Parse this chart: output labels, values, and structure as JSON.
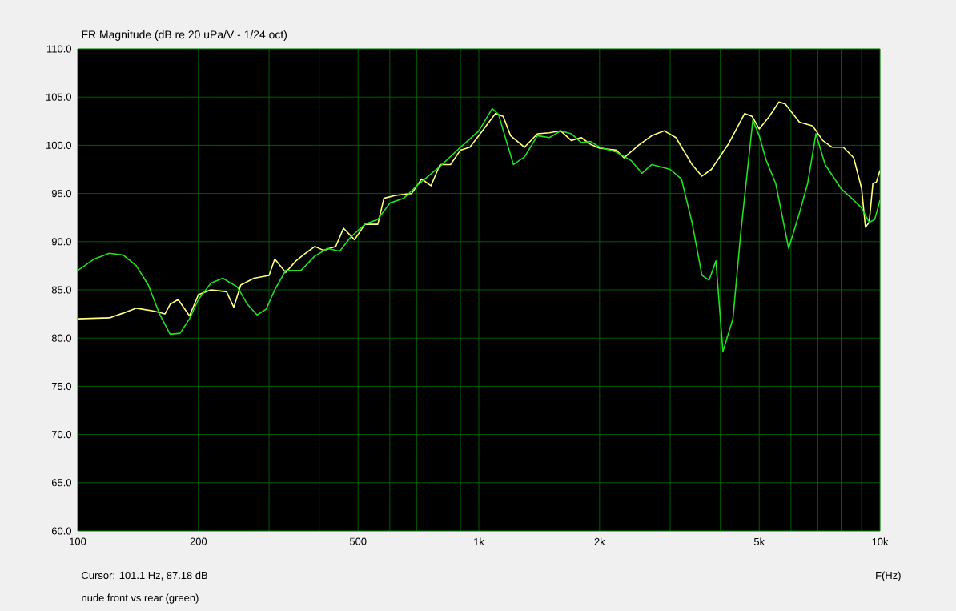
{
  "chart_data": {
    "type": "line",
    "title": "FR Magnitude (dB re 20 uPa/V - 1/24 oct)",
    "xlabel": "F(Hz)",
    "annotations": [
      "Cursor: 101.1 Hz, 87.18 dB",
      "nude front vs rear (green)"
    ],
    "log": "x",
    "grid": true,
    "xlim": [
      100,
      10000
    ],
    "ylim": [
      60,
      110
    ],
    "xticks": [
      {
        "value": 100,
        "label": "100"
      },
      {
        "value": 200,
        "label": "200"
      },
      {
        "value": 300,
        "label": null
      },
      {
        "value": 400,
        "label": null
      },
      {
        "value": 500,
        "label": "500"
      },
      {
        "value": 600,
        "label": null
      },
      {
        "value": 700,
        "label": null
      },
      {
        "value": 800,
        "label": null
      },
      {
        "value": 900,
        "label": null
      },
      {
        "value": 1000,
        "label": "1k"
      },
      {
        "value": 2000,
        "label": "2k"
      },
      {
        "value": 3000,
        "label": null
      },
      {
        "value": 4000,
        "label": null
      },
      {
        "value": 5000,
        "label": "5k"
      },
      {
        "value": 6000,
        "label": null
      },
      {
        "value": 7000,
        "label": null
      },
      {
        "value": 8000,
        "label": null
      },
      {
        "value": 9000,
        "label": null
      },
      {
        "value": 10000,
        "label": "10k"
      }
    ],
    "yticks": [
      {
        "value": 60,
        "label": "60.0"
      },
      {
        "value": 65,
        "label": "65.0"
      },
      {
        "value": 70,
        "label": "70.0"
      },
      {
        "value": 75,
        "label": "75.0"
      },
      {
        "value": 80,
        "label": "80.0"
      },
      {
        "value": 85,
        "label": "85.0"
      },
      {
        "value": 90,
        "label": "90.0"
      },
      {
        "value": 95,
        "label": "95.0"
      },
      {
        "value": 100,
        "label": "100.0"
      },
      {
        "value": 105,
        "label": "105.0"
      },
      {
        "value": 110,
        "label": "110.0"
      }
    ],
    "series": [
      {
        "color": "#ffff80",
        "x": [
          100,
          120,
          130,
          140,
          155,
          165,
          170,
          178,
          190,
          200,
          215,
          235,
          245,
          255,
          275,
          300,
          310,
          330,
          350,
          370,
          390,
          410,
          440,
          460,
          490,
          520,
          560,
          580,
          620,
          680,
          720,
          760,
          800,
          850,
          900,
          950,
          1000,
          1100,
          1150,
          1200,
          1300,
          1400,
          1500,
          1600,
          1700,
          1800,
          1900,
          2000,
          2200,
          2300,
          2500,
          2700,
          2900,
          3100,
          3400,
          3600,
          3800,
          4200,
          4600,
          4800,
          5000,
          5300,
          5600,
          5800,
          6300,
          6800,
          7200,
          7600,
          8100,
          8600,
          9000,
          9200,
          9400,
          9600,
          9800,
          10000
        ],
        "values": [
          82,
          82.1,
          82.6,
          83.1,
          82.8,
          82.5,
          83.5,
          84,
          82.3,
          84.5,
          85,
          84.8,
          83.2,
          85.5,
          86.2,
          86.5,
          88.2,
          86.8,
          88,
          88.8,
          89.5,
          89.1,
          89.5,
          91.4,
          90.2,
          91.8,
          91.8,
          94.5,
          94.8,
          95,
          96.5,
          95.8,
          98,
          98,
          99.5,
          99.8,
          101,
          103.3,
          103,
          101,
          99.8,
          101.2,
          101.3,
          101.5,
          100.5,
          100.8,
          100.1,
          99.7,
          99.5,
          98.7,
          100,
          101,
          101.5,
          100.8,
          98,
          96.8,
          97.5,
          100.2,
          103.3,
          103,
          101.7,
          103,
          104.5,
          104.3,
          102.4,
          102,
          100.5,
          99.8,
          99.8,
          98.7,
          95.5,
          91.5,
          92,
          96,
          96.2,
          97.4
        ]
      },
      {
        "color": "#22e022",
        "x": [
          100,
          110,
          120,
          130,
          140,
          150,
          160,
          170,
          180,
          190,
          200,
          215,
          230,
          250,
          265,
          280,
          295,
          310,
          330,
          360,
          390,
          420,
          450,
          480,
          520,
          560,
          600,
          650,
          700,
          800,
          900,
          1000,
          1080,
          1120,
          1180,
          1220,
          1300,
          1400,
          1500,
          1600,
          1700,
          1800,
          1900,
          2000,
          2200,
          2400,
          2550,
          2700,
          3000,
          3200,
          3400,
          3600,
          3750,
          3900,
          4060,
          4300,
          4500,
          4820,
          5000,
          5200,
          5500,
          5920,
          6300,
          6600,
          6925,
          7300,
          8000,
          8500,
          9000,
          9400,
          9700,
          10000
        ],
        "values": [
          87,
          88.2,
          88.8,
          88.6,
          87.5,
          85.5,
          82.5,
          80.4,
          80.5,
          82,
          84,
          85.7,
          86.2,
          85.3,
          83.5,
          82.4,
          83,
          85,
          87,
          87,
          88.5,
          89.3,
          89,
          90.5,
          91.8,
          92.3,
          94,
          94.5,
          95.8,
          97.8,
          99.8,
          101.5,
          103.8,
          103.2,
          100,
          98,
          98.8,
          101,
          100.8,
          101.5,
          101.2,
          100.3,
          100.4,
          99.8,
          99.3,
          98.4,
          97.1,
          98,
          97.5,
          96.5,
          92,
          86.5,
          86,
          88,
          78.6,
          82,
          91,
          102.6,
          101,
          98.5,
          96,
          89.3,
          93,
          96,
          101.2,
          98,
          95.5,
          94.5,
          93.5,
          92,
          92.3,
          94.3
        ]
      }
    ]
  }
}
